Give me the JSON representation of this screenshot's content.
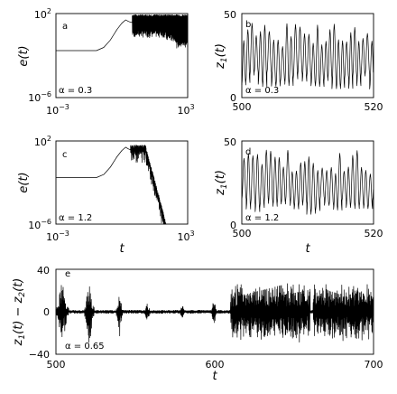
{
  "chart_data": [
    {
      "panel": "a",
      "type": "line",
      "scale": "loglog",
      "ylabel": "e(t)",
      "xlabel": "",
      "xlim": [
        0.001,
        1000
      ],
      "ylim": [
        1e-06,
        100
      ],
      "xticks": [
        "10^-3",
        "10^3"
      ],
      "yticks": [
        "10^-6",
        "10^2"
      ],
      "annotation": "α = 0.3",
      "series": [
        {
          "x": [
            0.001,
            0.07,
            0.15,
            0.3,
            0.6,
            1.0,
            1.5,
            2.0,
            2.5,
            3.0,
            5,
            10,
            30,
            100,
            300,
            1000
          ],
          "y": [
            0.03,
            0.03,
            0.06,
            0.3,
            3,
            12,
            25,
            18,
            15,
            14,
            "band 3–80",
            "band 3–80",
            "band 3–80",
            "band 1–80",
            "band 0.5–80",
            "band 0.5–80"
          ]
        }
      ]
    },
    {
      "panel": "b",
      "type": "line",
      "ylabel": "z_1(t)",
      "xlabel": "",
      "xlim": [
        500,
        520
      ],
      "ylim": [
        0,
        50
      ],
      "xticks": [
        500,
        520
      ],
      "yticks": [
        0,
        50
      ],
      "annotation": "α = 0.3",
      "description": "chaotic oscillation, period ≈ 0.65, peaks 30–45, troughs 5–15"
    },
    {
      "panel": "c",
      "type": "line",
      "scale": "loglog",
      "ylabel": "e(t)",
      "xlabel": "t",
      "xlim": [
        0.001,
        1000
      ],
      "ylim": [
        1e-06,
        100
      ],
      "xticks": [
        "10^-3",
        "10^3"
      ],
      "yticks": [
        "10^-6",
        "10^2"
      ],
      "annotation": "α = 1.2",
      "series": [
        {
          "x": [
            0.001,
            0.07,
            0.15,
            0.3,
            0.6,
            1.0,
            1.5,
            2.5,
            5,
            10,
            20,
            30,
            50,
            70,
            90,
            110
          ],
          "y": [
            0.03,
            0.03,
            0.06,
            0.3,
            3,
            12,
            25,
            14,
            30,
            20,
            10,
            1,
            0.05,
            0.001,
            2e-05,
            1e-06
          ]
        }
      ]
    },
    {
      "panel": "d",
      "type": "line",
      "ylabel": "z_1(t)",
      "xlabel": "t",
      "xlim": [
        500,
        520
      ],
      "ylim": [
        0,
        50
      ],
      "xticks": [
        500,
        520
      ],
      "yticks": [
        0,
        50
      ],
      "annotation": "α = 1.2",
      "description": "chaotic oscillation, period ≈ 0.65, peaks 30–45, troughs 5–15"
    },
    {
      "panel": "e",
      "type": "line",
      "ylabel": "z_1(t) − z_2(t)",
      "xlabel": "t",
      "xlim": [
        500,
        700
      ],
      "ylim": [
        -40,
        40
      ],
      "xticks": [
        500,
        600,
        700
      ],
      "yticks": [
        -40,
        0,
        40
      ],
      "annotation": "α = 0.65",
      "bursts": [
        {
          "t_start": 500,
          "t_end": 508,
          "amplitude": 30
        },
        {
          "t_start": 518,
          "t_end": 524,
          "amplitude": 32
        },
        {
          "t_start": 538,
          "t_end": 542,
          "amplitude": 25
        },
        {
          "t_start": 555,
          "t_end": 560,
          "amplitude": 8
        },
        {
          "t_start": 578,
          "t_end": 581,
          "amplitude": 8
        },
        {
          "t_start": 598,
          "t_end": 601,
          "amplitude": 18
        },
        {
          "t_start": 610,
          "t_end": 660,
          "amplitude": 30
        },
        {
          "t_start": 662,
          "t_end": 700,
          "amplitude": 28
        }
      ]
    }
  ]
}
